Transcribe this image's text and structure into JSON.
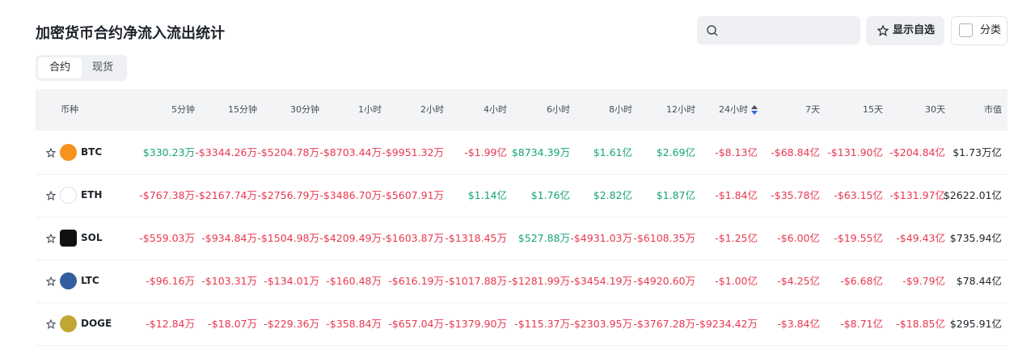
{
  "header": {
    "title": "加密货币合约净流入流出统计"
  },
  "toolbar": {
    "favorites": "显示自选",
    "category": "分类"
  },
  "tabs": [
    "合约",
    "现货"
  ],
  "table": {
    "columns": [
      "币种",
      "5分钟",
      "15分钟",
      "30分钟",
      "1小时",
      "2小时",
      "4小时",
      "6小时",
      "8小时",
      "12小时",
      "24小时",
      "7天",
      "15天",
      "30天",
      "市值"
    ],
    "rows": [
      [
        "BTC",
        "$330.23万",
        "-$3344.26万",
        "-$5204.78万",
        "-$8703.44万",
        "-$9951.32万",
        "-$1.99亿",
        "$8734.39万",
        "$1.61亿",
        "$2.69亿",
        "-$8.13亿",
        "-$68.84亿",
        "-$131.90亿",
        "-$204.84亿",
        "$1.73万亿"
      ],
      [
        "ETH",
        "-$767.38万",
        "-$2167.74万",
        "-$2756.79万",
        "-$3486.70万",
        "-$5607.91万",
        "$1.14亿",
        "$1.76亿",
        "$2.82亿",
        "$1.87亿",
        "-$1.84亿",
        "-$35.78亿",
        "-$63.15亿",
        "-$131.97亿",
        "$2622.01亿"
      ],
      [
        "SOL",
        "-$559.03万",
        "-$934.84万",
        "-$1504.98万",
        "-$4209.49万",
        "-$1603.87万",
        "-$1318.45万",
        "$527.88万",
        "-$4931.03万",
        "-$6108.35万",
        "-$1.25亿",
        "-$6.00亿",
        "-$19.55亿",
        "-$49.43亿",
        "$735.94亿"
      ],
      [
        "LTC",
        "-$96.16万",
        "-$103.31万",
        "-$134.01万",
        "-$160.48万",
        "-$616.19万",
        "-$1017.88万",
        "-$1281.99万",
        "-$3454.19万",
        "-$4920.60万",
        "-$1.00亿",
        "-$4.25亿",
        "-$6.68亿",
        "-$9.79亿",
        "$78.44亿"
      ],
      [
        "DOGE",
        "-$12.84万",
        "-$18.07万",
        "-$229.36万",
        "-$358.84万",
        "-$657.04万",
        "-$1379.90万",
        "-$115.37万",
        "-$2303.95万",
        "-$3767.28万",
        "-$9234.42万",
        "-$3.84亿",
        "-$8.71亿",
        "-$18.85亿",
        "$295.91亿"
      ]
    ]
  }
}
